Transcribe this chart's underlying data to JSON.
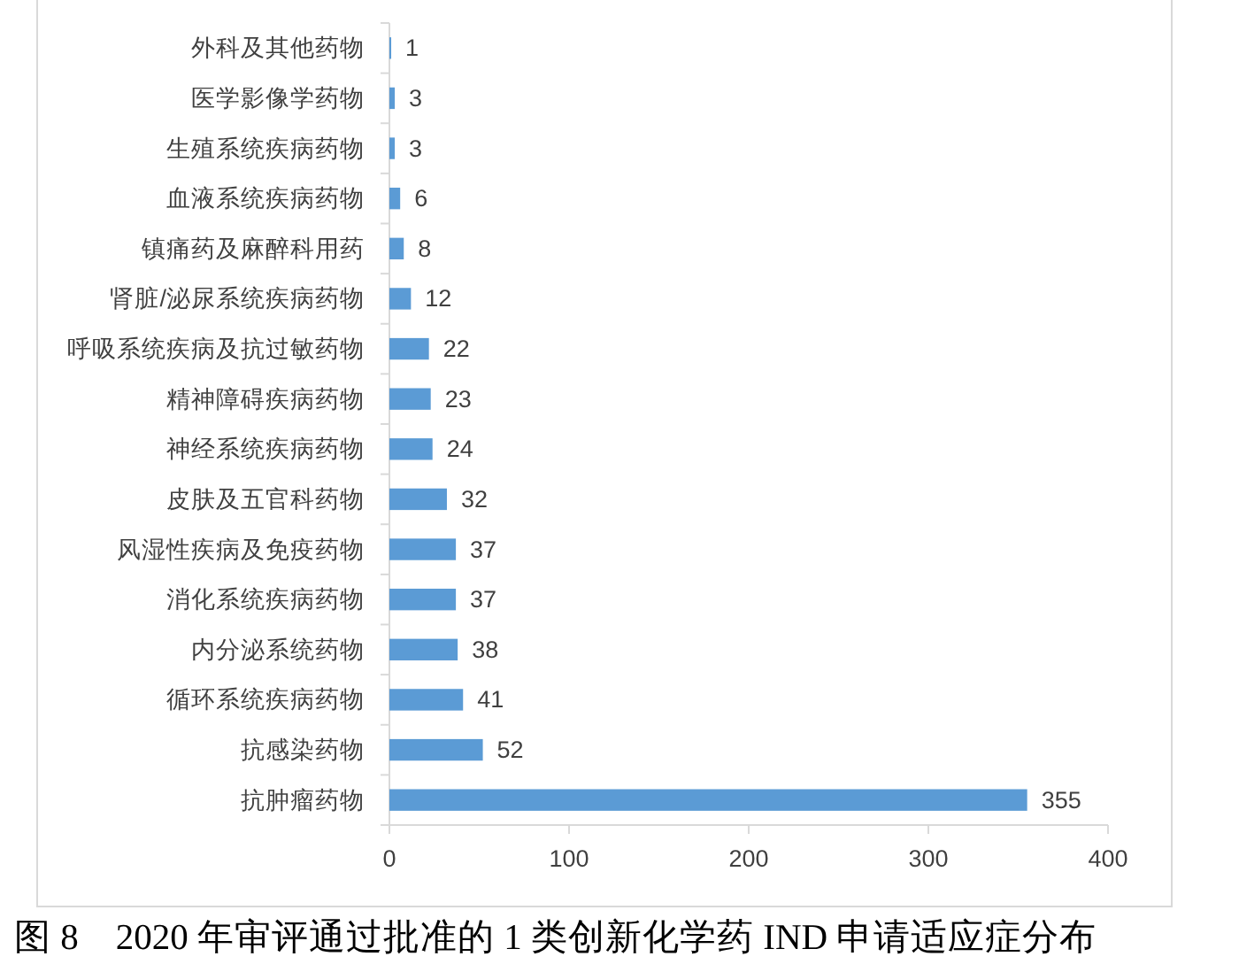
{
  "chart_data": {
    "type": "bar",
    "orientation": "horizontal",
    "title": "图 8　2020 年审评通过批准的 1 类创新化学药 IND 申请适应症分布",
    "categories": [
      "外科及其他药物",
      "医学影像学药物",
      "生殖系统疾病药物",
      "血液系统疾病药物",
      "镇痛药及麻醉科用药",
      "肾脏/泌尿系统疾病药物",
      "呼吸系统疾病及抗过敏药物",
      "精神障碍疾病药物",
      "神经系统疾病药物",
      "皮肤及五官科药物",
      "风湿性疾病及免疫药物",
      "消化系统疾病药物",
      "内分泌系统药物",
      "循环系统疾病药物",
      "抗感染药物",
      "抗肿瘤药物"
    ],
    "values": [
      1,
      3,
      3,
      6,
      8,
      12,
      22,
      23,
      24,
      32,
      37,
      37,
      38,
      41,
      52,
      355
    ],
    "color": "#5b9bd5",
    "xlim": [
      0,
      400
    ],
    "xticks": [
      0,
      100,
      200,
      300,
      400
    ],
    "data_labels": true
  }
}
